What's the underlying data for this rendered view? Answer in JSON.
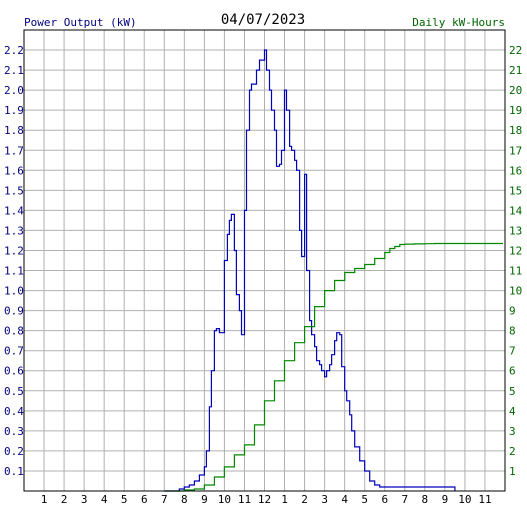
{
  "chart_data": {
    "type": "line",
    "title": "04/07/2023",
    "ylabel_left": "Power Output (kW)",
    "ylabel_right": "Daily kW-Hours",
    "colors": {
      "power": "#0000bb",
      "energy": "#008800",
      "left_axis_text": "#000080",
      "right_axis_text": "#006600",
      "grid": "#b0b0b0"
    },
    "grid": true,
    "x_range": [
      0,
      24
    ],
    "x_ticks": [
      {
        "x": 1,
        "label": "1"
      },
      {
        "x": 2,
        "label": "2"
      },
      {
        "x": 3,
        "label": "3"
      },
      {
        "x": 4,
        "label": "4"
      },
      {
        "x": 5,
        "label": "5"
      },
      {
        "x": 6,
        "label": "6"
      },
      {
        "x": 7,
        "label": "7"
      },
      {
        "x": 8,
        "label": "8"
      },
      {
        "x": 9,
        "label": "9"
      },
      {
        "x": 10,
        "label": "10"
      },
      {
        "x": 11,
        "label": "11"
      },
      {
        "x": 12,
        "label": "12"
      },
      {
        "x": 13,
        "label": "1"
      },
      {
        "x": 14,
        "label": "2"
      },
      {
        "x": 15,
        "label": "3"
      },
      {
        "x": 16,
        "label": "4"
      },
      {
        "x": 17,
        "label": "5"
      },
      {
        "x": 18,
        "label": "6"
      },
      {
        "x": 19,
        "label": "7"
      },
      {
        "x": 20,
        "label": "8"
      },
      {
        "x": 21,
        "label": "9"
      },
      {
        "x": 22,
        "label": "10"
      },
      {
        "x": 23,
        "label": "11"
      }
    ],
    "y_left": {
      "range": [
        0,
        2.3
      ],
      "ticks": [
        "0.1",
        "0.2",
        "0.3",
        "0.4",
        "0.5",
        "0.6",
        "0.7",
        "0.8",
        "0.9",
        "1.0",
        "1.1",
        "1.2",
        "1.3",
        "1.4",
        "1.5",
        "1.6",
        "1.7",
        "1.8",
        "1.9",
        "2.0",
        "2.1",
        "2.2"
      ]
    },
    "y_right": {
      "range": [
        0,
        23
      ],
      "ticks": [
        "1",
        "2",
        "3",
        "4",
        "5",
        "6",
        "7",
        "8",
        "9",
        "10",
        "11",
        "12",
        "13",
        "14",
        "15",
        "16",
        "17",
        "18",
        "19",
        "20",
        "21",
        "22"
      ]
    },
    "series": [
      {
        "key": "power",
        "axis": "left",
        "x": [
          7.0,
          7.5,
          7.75,
          8.0,
          8.25,
          8.5,
          8.75,
          9.0,
          9.1,
          9.25,
          9.35,
          9.5,
          9.6,
          9.75,
          10.0,
          10.15,
          10.25,
          10.35,
          10.5,
          10.6,
          10.75,
          10.85,
          11.0,
          11.1,
          11.25,
          11.35,
          11.5,
          11.6,
          11.75,
          12.0,
          12.1,
          12.25,
          12.35,
          12.5,
          12.6,
          12.75,
          12.85,
          13.0,
          13.1,
          13.25,
          13.35,
          13.5,
          13.6,
          13.75,
          13.85,
          14.0,
          14.1,
          14.25,
          14.35,
          14.5,
          14.6,
          14.75,
          14.85,
          15.0,
          15.1,
          15.25,
          15.35,
          15.5,
          15.6,
          15.75,
          15.85,
          16.0,
          16.1,
          16.25,
          16.35,
          16.5,
          16.75,
          17.0,
          17.25,
          17.5,
          17.75,
          17.85,
          18.0,
          18.1,
          18.25,
          18.35,
          18.5,
          18.6,
          18.75,
          18.85,
          19.0,
          19.1,
          19.25,
          19.35,
          19.5,
          19.6,
          19.75,
          19.85,
          20.0,
          20.25,
          20.5,
          20.75,
          21.0,
          21.25,
          21.5
        ],
        "values": [
          0,
          0,
          0.01,
          0.02,
          0.03,
          0.05,
          0.08,
          0.12,
          0.2,
          0.42,
          0.6,
          0.8,
          0.81,
          0.79,
          1.15,
          1.28,
          1.35,
          1.38,
          1.2,
          0.98,
          0.9,
          0.78,
          1.4,
          1.8,
          2.0,
          2.03,
          2.03,
          2.1,
          2.15,
          2.2,
          2.1,
          2.0,
          1.9,
          1.8,
          1.62,
          1.63,
          1.7,
          2.0,
          1.9,
          1.72,
          1.7,
          1.65,
          1.6,
          1.3,
          1.17,
          1.58,
          1.1,
          0.85,
          0.78,
          0.72,
          0.65,
          0.63,
          0.6,
          0.57,
          0.6,
          0.63,
          0.68,
          0.75,
          0.79,
          0.78,
          0.62,
          0.5,
          0.45,
          0.38,
          0.3,
          0.22,
          0.15,
          0.1,
          0.05,
          0.03,
          0.02,
          0.02,
          0.02,
          0.02,
          0.02,
          0.02,
          0.02,
          0.02,
          0.02,
          0.02,
          0.02,
          0.02,
          0.02,
          0.02,
          0.02,
          0.02,
          0.02,
          0.02,
          0.02,
          0.02,
          0.02,
          0.02,
          0.02,
          0.02,
          0
        ]
      },
      {
        "key": "energy",
        "axis": "right",
        "x": [
          7.0,
          8.0,
          8.5,
          9.0,
          9.5,
          10.0,
          10.5,
          11.0,
          11.5,
          12.0,
          12.5,
          13.0,
          13.5,
          14.0,
          14.5,
          15.0,
          15.5,
          16.0,
          16.5,
          17.0,
          17.5,
          18.0,
          18.25,
          18.5,
          18.75,
          19.0,
          19.5,
          20.0,
          20.5,
          21.0,
          21.5,
          22.0,
          23.0,
          23.9
        ],
        "values": [
          0,
          0.05,
          0.1,
          0.3,
          0.7,
          1.2,
          1.8,
          2.3,
          3.3,
          4.5,
          5.5,
          6.5,
          7.4,
          8.2,
          9.2,
          10.0,
          10.5,
          10.9,
          11.1,
          11.3,
          11.6,
          11.9,
          12.1,
          12.2,
          12.3,
          12.32,
          12.33,
          12.34,
          12.35,
          12.35,
          12.35,
          12.35,
          12.35,
          12.35
        ]
      }
    ]
  }
}
